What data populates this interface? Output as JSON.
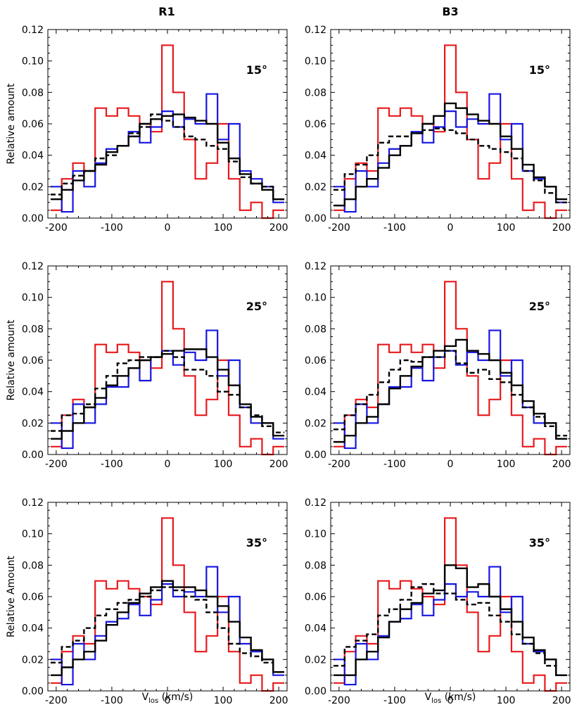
{
  "chart_data": {
    "type": "step-histogram",
    "x_ticks": [
      -200,
      -100,
      0,
      100,
      200
    ],
    "y_ticks": [
      0.0,
      0.02,
      0.04,
      0.06,
      0.08,
      0.1,
      0.12
    ],
    "xlim": [
      -215,
      215
    ],
    "ylim": [
      0,
      0.12
    ],
    "xlabel_main": "V",
    "xlabel_sub": "los",
    "xlabel_unit": " (km/s)",
    "ylabels": [
      "Relative amount",
      "Relative amount",
      "Relative Amount"
    ],
    "columns": [
      "R1",
      "B3"
    ],
    "bin_edges": [
      -210,
      -190,
      -170,
      -150,
      -130,
      -110,
      -90,
      -70,
      -50,
      -30,
      -10,
      10,
      30,
      50,
      70,
      90,
      110,
      130,
      150,
      170,
      190,
      210
    ],
    "colors": {
      "red": "#e8191c",
      "blue": "#1616e0",
      "black": "#000000"
    },
    "panels": [
      {
        "column": "R1",
        "label": "15°",
        "series": [
          {
            "color": "red",
            "style": "solid",
            "values": [
              0.005,
              0.025,
              0.035,
              0.03,
              0.07,
              0.065,
              0.07,
              0.065,
              0.06,
              0.055,
              0.11,
              0.08,
              0.05,
              0.025,
              0.035,
              0.06,
              0.025,
              0.005,
              0.01,
              0.0,
              0.005
            ]
          },
          {
            "color": "blue",
            "style": "solid",
            "values": [
              0.02,
              0.004,
              0.03,
              0.02,
              0.035,
              0.044,
              0.046,
              0.055,
              0.048,
              0.058,
              0.068,
              0.058,
              0.063,
              0.06,
              0.079,
              0.05,
              0.06,
              0.03,
              0.025,
              0.02,
              0.01
            ]
          },
          {
            "color": "black",
            "style": "solid",
            "values": [
              0.012,
              0.018,
              0.024,
              0.03,
              0.034,
              0.042,
              0.046,
              0.052,
              0.06,
              0.063,
              0.065,
              0.066,
              0.064,
              0.062,
              0.06,
              0.048,
              0.038,
              0.028,
              0.022,
              0.018,
              0.012
            ]
          },
          {
            "color": "black",
            "style": "dashed",
            "values": [
              0.015,
              0.022,
              0.027,
              0.03,
              0.038,
              0.04,
              0.046,
              0.054,
              0.058,
              0.066,
              0.062,
              0.058,
              0.052,
              0.05,
              0.046,
              0.044,
              0.036,
              0.026,
              0.022,
              0.02,
              0.012
            ]
          }
        ]
      },
      {
        "column": "B3",
        "label": "15°",
        "series": [
          {
            "color": "red",
            "style": "solid",
            "values": [
              0.005,
              0.025,
              0.035,
              0.03,
              0.07,
              0.065,
              0.07,
              0.065,
              0.06,
              0.055,
              0.11,
              0.08,
              0.05,
              0.025,
              0.035,
              0.06,
              0.025,
              0.005,
              0.01,
              0.0,
              0.005
            ]
          },
          {
            "color": "blue",
            "style": "solid",
            "values": [
              0.02,
              0.004,
              0.03,
              0.02,
              0.035,
              0.044,
              0.046,
              0.055,
              0.048,
              0.058,
              0.068,
              0.058,
              0.063,
              0.06,
              0.079,
              0.05,
              0.06,
              0.03,
              0.025,
              0.02,
              0.01
            ]
          },
          {
            "color": "black",
            "style": "solid",
            "values": [
              0.008,
              0.012,
              0.02,
              0.025,
              0.032,
              0.04,
              0.046,
              0.054,
              0.06,
              0.065,
              0.073,
              0.07,
              0.066,
              0.062,
              0.06,
              0.052,
              0.044,
              0.034,
              0.026,
              0.02,
              0.012
            ]
          },
          {
            "color": "black",
            "style": "dashed",
            "values": [
              0.018,
              0.028,
              0.034,
              0.04,
              0.048,
              0.052,
              0.052,
              0.054,
              0.056,
              0.057,
              0.056,
              0.054,
              0.05,
              0.046,
              0.044,
              0.042,
              0.038,
              0.03,
              0.024,
              0.016,
              0.01
            ]
          }
        ]
      },
      {
        "column": "R1",
        "label": "25°",
        "series": [
          {
            "color": "red",
            "style": "solid",
            "values": [
              0.005,
              0.025,
              0.035,
              0.03,
              0.07,
              0.065,
              0.07,
              0.065,
              0.06,
              0.055,
              0.11,
              0.08,
              0.05,
              0.025,
              0.035,
              0.06,
              0.025,
              0.005,
              0.01,
              0.0,
              0.005
            ]
          },
          {
            "color": "blue",
            "style": "solid",
            "values": [
              0.02,
              0.004,
              0.032,
              0.02,
              0.032,
              0.043,
              0.043,
              0.055,
              0.047,
              0.062,
              0.066,
              0.057,
              0.065,
              0.06,
              0.079,
              0.05,
              0.06,
              0.03,
              0.02,
              0.02,
              0.01
            ]
          },
          {
            "color": "black",
            "style": "solid",
            "values": [
              0.01,
              0.015,
              0.02,
              0.03,
              0.036,
              0.044,
              0.05,
              0.055,
              0.06,
              0.062,
              0.064,
              0.066,
              0.067,
              0.067,
              0.062,
              0.054,
              0.044,
              0.032,
              0.024,
              0.02,
              0.012
            ]
          },
          {
            "color": "black",
            "style": "dashed",
            "values": [
              0.015,
              0.025,
              0.026,
              0.032,
              0.042,
              0.05,
              0.058,
              0.06,
              0.062,
              0.062,
              0.066,
              0.062,
              0.054,
              0.054,
              0.05,
              0.04,
              0.038,
              0.03,
              0.025,
              0.018,
              0.014
            ]
          }
        ]
      },
      {
        "column": "B3",
        "label": "25°",
        "series": [
          {
            "color": "red",
            "style": "solid",
            "values": [
              0.005,
              0.025,
              0.035,
              0.03,
              0.07,
              0.065,
              0.07,
              0.065,
              0.07,
              0.055,
              0.11,
              0.08,
              0.05,
              0.025,
              0.035,
              0.06,
              0.025,
              0.005,
              0.01,
              0.0,
              0.005
            ]
          },
          {
            "color": "blue",
            "style": "solid",
            "values": [
              0.02,
              0.004,
              0.032,
              0.02,
              0.032,
              0.043,
              0.043,
              0.055,
              0.047,
              0.062,
              0.066,
              0.057,
              0.065,
              0.06,
              0.079,
              0.05,
              0.06,
              0.03,
              0.02,
              0.02,
              0.01
            ]
          },
          {
            "color": "black",
            "style": "solid",
            "values": [
              0.008,
              0.012,
              0.02,
              0.024,
              0.032,
              0.042,
              0.05,
              0.056,
              0.062,
              0.066,
              0.069,
              0.073,
              0.066,
              0.064,
              0.06,
              0.052,
              0.044,
              0.034,
              0.026,
              0.02,
              0.01
            ]
          },
          {
            "color": "black",
            "style": "dashed",
            "values": [
              0.016,
              0.025,
              0.032,
              0.038,
              0.046,
              0.054,
              0.06,
              0.059,
              0.062,
              0.062,
              0.066,
              0.058,
              0.052,
              0.054,
              0.048,
              0.046,
              0.038,
              0.03,
              0.024,
              0.018,
              0.012
            ]
          }
        ]
      },
      {
        "column": "R1",
        "label": "35°",
        "series": [
          {
            "color": "red",
            "style": "solid",
            "values": [
              0.005,
              0.025,
              0.035,
              0.03,
              0.07,
              0.065,
              0.07,
              0.065,
              0.06,
              0.055,
              0.11,
              0.08,
              0.05,
              0.025,
              0.035,
              0.06,
              0.025,
              0.005,
              0.01,
              0.0,
              0.005
            ]
          },
          {
            "color": "blue",
            "style": "solid",
            "values": [
              0.02,
              0.004,
              0.03,
              0.02,
              0.035,
              0.044,
              0.046,
              0.055,
              0.048,
              0.058,
              0.068,
              0.06,
              0.063,
              0.06,
              0.079,
              0.05,
              0.06,
              0.03,
              0.025,
              0.02,
              0.01
            ]
          },
          {
            "color": "black",
            "style": "solid",
            "values": [
              0.01,
              0.015,
              0.02,
              0.025,
              0.032,
              0.042,
              0.05,
              0.056,
              0.062,
              0.066,
              0.07,
              0.066,
              0.066,
              0.064,
              0.06,
              0.054,
              0.044,
              0.034,
              0.026,
              0.02,
              0.012
            ]
          },
          {
            "color": "black",
            "style": "dashed",
            "values": [
              0.018,
              0.028,
              0.032,
              0.04,
              0.048,
              0.052,
              0.056,
              0.058,
              0.06,
              0.064,
              0.066,
              0.064,
              0.06,
              0.058,
              0.05,
              0.04,
              0.03,
              0.024,
              0.022,
              0.018,
              0.012
            ]
          }
        ]
      },
      {
        "column": "B3",
        "label": "35°",
        "series": [
          {
            "color": "red",
            "style": "solid",
            "values": [
              0.005,
              0.025,
              0.035,
              0.03,
              0.07,
              0.065,
              0.07,
              0.065,
              0.06,
              0.055,
              0.11,
              0.08,
              0.05,
              0.025,
              0.035,
              0.06,
              0.025,
              0.005,
              0.01,
              0.0,
              0.005
            ]
          },
          {
            "color": "blue",
            "style": "solid",
            "values": [
              0.02,
              0.004,
              0.03,
              0.02,
              0.035,
              0.044,
              0.046,
              0.055,
              0.048,
              0.058,
              0.068,
              0.06,
              0.063,
              0.06,
              0.079,
              0.05,
              0.06,
              0.03,
              0.025,
              0.02,
              0.01
            ]
          },
          {
            "color": "black",
            "style": "solid",
            "values": [
              0.01,
              0.01,
              0.02,
              0.025,
              0.034,
              0.044,
              0.052,
              0.056,
              0.062,
              0.064,
              0.08,
              0.078,
              0.066,
              0.068,
              0.06,
              0.052,
              0.044,
              0.034,
              0.026,
              0.02,
              0.01
            ]
          },
          {
            "color": "black",
            "style": "dashed",
            "values": [
              0.016,
              0.028,
              0.032,
              0.036,
              0.048,
              0.052,
              0.058,
              0.066,
              0.068,
              0.062,
              0.062,
              0.058,
              0.055,
              0.056,
              0.048,
              0.044,
              0.036,
              0.03,
              0.024,
              0.016,
              0.01
            ]
          }
        ]
      }
    ]
  }
}
